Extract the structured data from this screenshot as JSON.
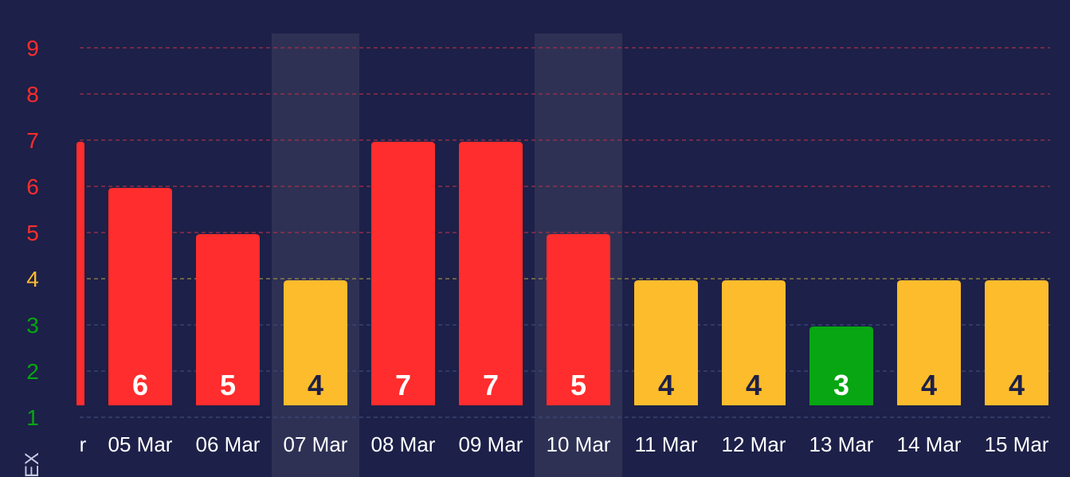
{
  "chart_data": {
    "type": "bar",
    "title": "",
    "xlabel": "",
    "ylabel": "EX",
    "ylim": [
      1,
      9
    ],
    "yticks": [
      {
        "label": "9",
        "value": 9,
        "color": "#ff2d2d"
      },
      {
        "label": "8",
        "value": 8,
        "color": "#ff2d2d"
      },
      {
        "label": "7",
        "value": 7,
        "color": "#ff2d2d"
      },
      {
        "label": "6",
        "value": 6,
        "color": "#ff2d2d"
      },
      {
        "label": "5",
        "value": 5,
        "color": "#ff2d2d"
      },
      {
        "label": "4",
        "value": 4,
        "color": "#fcbc2c"
      },
      {
        "label": "3",
        "value": 3,
        "color": "#07a612"
      },
      {
        "label": "2",
        "value": 2,
        "color": "#07a612"
      },
      {
        "label": "1",
        "value": 1,
        "color": "#07a612"
      }
    ],
    "partial_category": {
      "label": "r",
      "value": 7,
      "color": "#ff2d2d"
    },
    "categories": [
      "05 Mar",
      "06 Mar",
      "07 Mar",
      "08 Mar",
      "09 Mar",
      "10 Mar",
      "11 Mar",
      "12 Mar",
      "13 Mar",
      "14 Mar",
      "15 Mar"
    ],
    "values": [
      6,
      5,
      4,
      7,
      7,
      5,
      4,
      4,
      3,
      4,
      4
    ],
    "value_labels": [
      "6",
      "5",
      "4",
      "7",
      "7",
      "5",
      "4",
      "4",
      "3",
      "4",
      "4"
    ],
    "highlighted": [
      "07 Mar",
      "10 Mar"
    ],
    "colors": {
      "high": "#ff2d2d",
      "moderate": "#fcbc2c",
      "low": "#07a612",
      "background": "#1d2048",
      "highlight_band": "#2e3154",
      "label_dark": "#1d2048",
      "label_light": "#ffffff",
      "axis_text": "#ffffff"
    },
    "grid": true,
    "legend": "none"
  }
}
